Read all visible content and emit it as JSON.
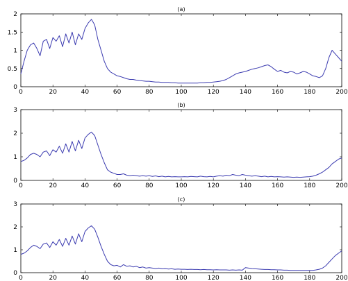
{
  "chart_data": [
    {
      "type": "line",
      "title": "(a)",
      "xlim": [
        0,
        200
      ],
      "ylim": [
        0,
        2
      ],
      "x_ticks": [
        "0",
        "20",
        "40",
        "60",
        "80",
        "100",
        "120",
        "140",
        "160",
        "180",
        "200"
      ],
      "y_ticks": [
        "0",
        "0.5",
        "1",
        "1.5",
        "2"
      ],
      "series_color": "#3b3bb0",
      "x": [
        0,
        2,
        4,
        6,
        8,
        10,
        12,
        14,
        16,
        18,
        20,
        22,
        24,
        26,
        28,
        30,
        32,
        34,
        36,
        38,
        40,
        42,
        44,
        46,
        48,
        50,
        52,
        54,
        56,
        58,
        60,
        62,
        64,
        66,
        68,
        70,
        72,
        74,
        76,
        78,
        80,
        82,
        84,
        86,
        88,
        90,
        92,
        94,
        96,
        98,
        100,
        102,
        104,
        106,
        108,
        110,
        112,
        114,
        116,
        118,
        120,
        122,
        124,
        126,
        128,
        130,
        132,
        134,
        136,
        138,
        140,
        142,
        144,
        146,
        148,
        150,
        152,
        154,
        156,
        158,
        160,
        162,
        164,
        166,
        168,
        170,
        172,
        174,
        176,
        178,
        180,
        182,
        184,
        186,
        188,
        190,
        192,
        194,
        196,
        198,
        200
      ],
      "values": [
        0.35,
        0.7,
        1.0,
        1.15,
        1.2,
        1.05,
        0.85,
        1.25,
        1.3,
        1.05,
        1.35,
        1.25,
        1.4,
        1.1,
        1.45,
        1.2,
        1.5,
        1.15,
        1.45,
        1.3,
        1.6,
        1.75,
        1.85,
        1.7,
        1.3,
        1.0,
        0.7,
        0.5,
        0.4,
        0.35,
        0.3,
        0.28,
        0.25,
        0.22,
        0.2,
        0.2,
        0.18,
        0.17,
        0.16,
        0.15,
        0.15,
        0.14,
        0.13,
        0.13,
        0.12,
        0.12,
        0.12,
        0.11,
        0.11,
        0.1,
        0.1,
        0.1,
        0.1,
        0.1,
        0.1,
        0.1,
        0.11,
        0.11,
        0.12,
        0.12,
        0.13,
        0.14,
        0.15,
        0.17,
        0.2,
        0.25,
        0.3,
        0.35,
        0.38,
        0.4,
        0.42,
        0.45,
        0.48,
        0.5,
        0.52,
        0.55,
        0.58,
        0.6,
        0.55,
        0.48,
        0.42,
        0.45,
        0.4,
        0.38,
        0.42,
        0.4,
        0.35,
        0.38,
        0.42,
        0.4,
        0.35,
        0.3,
        0.28,
        0.25,
        0.3,
        0.5,
        0.8,
        1.0,
        0.9,
        0.8,
        0.7
      ]
    },
    {
      "type": "line",
      "title": "(b)",
      "xlim": [
        0,
        200
      ],
      "ylim": [
        0,
        3
      ],
      "x_ticks": [
        "0",
        "20",
        "40",
        "60",
        "80",
        "100",
        "120",
        "140",
        "160",
        "180",
        "200"
      ],
      "y_ticks": [
        "0",
        "1",
        "2",
        "3"
      ],
      "series_color": "#3b3bb0",
      "x": [
        0,
        2,
        4,
        6,
        8,
        10,
        12,
        14,
        16,
        18,
        20,
        22,
        24,
        26,
        28,
        30,
        32,
        34,
        36,
        38,
        40,
        42,
        44,
        46,
        48,
        50,
        52,
        54,
        56,
        58,
        60,
        62,
        64,
        66,
        68,
        70,
        72,
        74,
        76,
        78,
        80,
        82,
        84,
        86,
        88,
        90,
        92,
        94,
        96,
        98,
        100,
        102,
        104,
        106,
        108,
        110,
        112,
        114,
        116,
        118,
        120,
        122,
        124,
        126,
        128,
        130,
        132,
        134,
        136,
        138,
        140,
        142,
        144,
        146,
        148,
        150,
        152,
        154,
        156,
        158,
        160,
        162,
        164,
        166,
        168,
        170,
        172,
        174,
        176,
        178,
        180,
        182,
        184,
        186,
        188,
        190,
        192,
        194,
        196,
        198,
        200
      ],
      "values": [
        0.8,
        0.85,
        0.95,
        1.1,
        1.15,
        1.1,
        1.0,
        1.2,
        1.25,
        1.05,
        1.3,
        1.2,
        1.45,
        1.15,
        1.55,
        1.2,
        1.65,
        1.25,
        1.7,
        1.35,
        1.8,
        1.95,
        2.05,
        1.9,
        1.5,
        1.1,
        0.75,
        0.45,
        0.35,
        0.3,
        0.25,
        0.25,
        0.28,
        0.22,
        0.2,
        0.22,
        0.2,
        0.18,
        0.2,
        0.18,
        0.2,
        0.17,
        0.19,
        0.16,
        0.18,
        0.15,
        0.17,
        0.15,
        0.16,
        0.15,
        0.15,
        0.16,
        0.15,
        0.17,
        0.16,
        0.15,
        0.18,
        0.16,
        0.15,
        0.17,
        0.15,
        0.18,
        0.2,
        0.18,
        0.22,
        0.2,
        0.25,
        0.22,
        0.2,
        0.25,
        0.22,
        0.2,
        0.18,
        0.2,
        0.18,
        0.16,
        0.18,
        0.15,
        0.17,
        0.15,
        0.16,
        0.15,
        0.14,
        0.15,
        0.14,
        0.13,
        0.14,
        0.13,
        0.14,
        0.15,
        0.16,
        0.18,
        0.22,
        0.28,
        0.35,
        0.45,
        0.55,
        0.7,
        0.8,
        0.9,
        0.95
      ]
    },
    {
      "type": "line",
      "title": "(c)",
      "xlim": [
        0,
        200
      ],
      "ylim": [
        0,
        3
      ],
      "x_ticks": [
        "0",
        "20",
        "40",
        "60",
        "80",
        "100",
        "120",
        "140",
        "160",
        "180",
        "200"
      ],
      "y_ticks": [
        "0",
        "1",
        "2",
        "3"
      ],
      "series_color": "#3b3bb0",
      "x": [
        0,
        2,
        4,
        6,
        8,
        10,
        12,
        14,
        16,
        18,
        20,
        22,
        24,
        26,
        28,
        30,
        32,
        34,
        36,
        38,
        40,
        42,
        44,
        46,
        48,
        50,
        52,
        54,
        56,
        58,
        60,
        62,
        64,
        66,
        68,
        70,
        72,
        74,
        76,
        78,
        80,
        82,
        84,
        86,
        88,
        90,
        92,
        94,
        96,
        98,
        100,
        102,
        104,
        106,
        108,
        110,
        112,
        114,
        116,
        118,
        120,
        122,
        124,
        126,
        128,
        130,
        132,
        134,
        136,
        138,
        140,
        142,
        144,
        146,
        148,
        150,
        152,
        154,
        156,
        158,
        160,
        162,
        164,
        166,
        168,
        170,
        172,
        174,
        176,
        178,
        180,
        182,
        184,
        186,
        188,
        190,
        192,
        194,
        196,
        198,
        200
      ],
      "values": [
        0.8,
        0.85,
        0.95,
        1.1,
        1.2,
        1.15,
        1.05,
        1.25,
        1.3,
        1.1,
        1.35,
        1.2,
        1.45,
        1.15,
        1.5,
        1.2,
        1.6,
        1.25,
        1.7,
        1.35,
        1.8,
        1.95,
        2.05,
        1.9,
        1.55,
        1.15,
        0.8,
        0.5,
        0.35,
        0.3,
        0.32,
        0.25,
        0.35,
        0.28,
        0.3,
        0.25,
        0.28,
        0.22,
        0.25,
        0.2,
        0.22,
        0.2,
        0.18,
        0.2,
        0.17,
        0.18,
        0.16,
        0.17,
        0.15,
        0.16,
        0.15,
        0.15,
        0.14,
        0.15,
        0.14,
        0.14,
        0.13,
        0.14,
        0.13,
        0.13,
        0.12,
        0.13,
        0.12,
        0.12,
        0.12,
        0.11,
        0.12,
        0.11,
        0.12,
        0.11,
        0.22,
        0.2,
        0.18,
        0.17,
        0.16,
        0.15,
        0.14,
        0.14,
        0.13,
        0.13,
        0.12,
        0.12,
        0.11,
        0.11,
        0.1,
        0.1,
        0.1,
        0.1,
        0.1,
        0.1,
        0.1,
        0.1,
        0.12,
        0.15,
        0.2,
        0.3,
        0.45,
        0.6,
        0.75,
        0.85,
        0.95
      ]
    }
  ]
}
